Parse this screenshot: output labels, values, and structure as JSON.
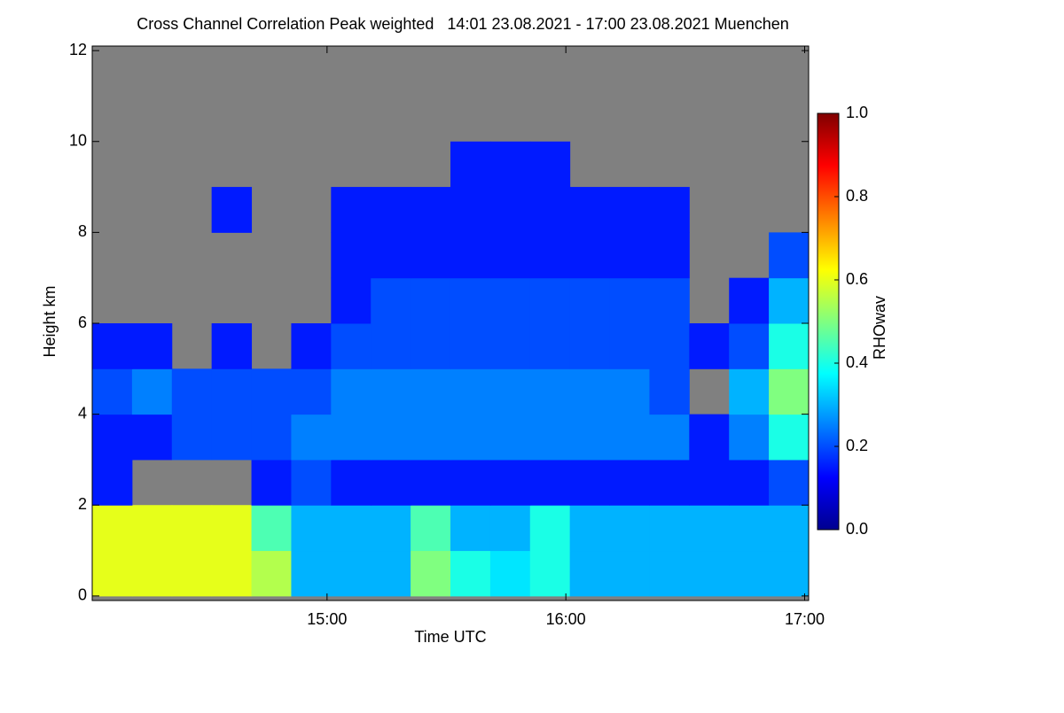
{
  "chart_data": {
    "type": "heatmap",
    "title": "Cross Channel Correlation Peak weighted   14:01 23.08.2021 - 17:00 23.08.2021 Muenchen",
    "x_label": "Time UTC",
    "y_label": "Height km",
    "colorbar_label": "RHOwav",
    "xlim": [
      14.0167,
      17.0167
    ],
    "xticks": [
      {
        "value": 15,
        "label": "15:00"
      },
      {
        "value": 16,
        "label": "16:00"
      },
      {
        "value": 17,
        "label": "17:00"
      }
    ],
    "ylim": [
      -0.1,
      12.1
    ],
    "yticks": [
      0,
      2,
      4,
      6,
      8,
      10,
      12
    ],
    "clim": [
      0,
      1
    ],
    "cticks": [
      {
        "value": 0,
        "label": "0.0"
      },
      0.2,
      0.4,
      0.6,
      0.8,
      {
        "value": 1,
        "label": "1.0"
      }
    ],
    "colormap": [
      "#00008f",
      "#0000ff",
      "#0080ff",
      "#00ffff",
      "#80ff80",
      "#ffff00",
      "#ff8000",
      "#ff0000",
      "#800000"
    ],
    "nodata_color": "#808080",
    "x": [
      14.1,
      14.2667,
      14.4333,
      14.6,
      14.7667,
      14.9333,
      15.1,
      15.2667,
      15.4333,
      15.6,
      15.7667,
      15.9333,
      16.1,
      16.2667,
      16.4333,
      16.6,
      16.7667,
      16.9333
    ],
    "y": [
      0.5,
      1.5,
      2.5,
      3.5,
      4.5,
      5.5,
      6.5,
      7.5,
      8.5,
      9.5,
      10.5,
      11.5
    ],
    "values": [
      [
        0.6,
        0.6,
        0.6,
        0.6,
        0.55,
        0.3,
        0.3,
        0.3,
        0.5,
        0.4,
        0.35,
        0.4,
        0.3,
        0.3,
        0.3,
        0.3,
        0.3,
        0.3
      ],
      [
        0.6,
        0.6,
        0.6,
        0.6,
        0.45,
        0.3,
        0.3,
        0.3,
        0.45,
        0.3,
        0.3,
        0.4,
        0.3,
        0.3,
        0.3,
        0.3,
        0.3,
        0.3
      ],
      [
        0.15,
        null,
        null,
        null,
        0.15,
        0.2,
        0.15,
        0.15,
        0.15,
        0.15,
        0.15,
        0.15,
        0.15,
        0.15,
        0.15,
        0.15,
        0.15,
        0.2
      ],
      [
        0.15,
        0.15,
        0.2,
        0.2,
        0.2,
        0.25,
        0.25,
        0.25,
        0.25,
        0.25,
        0.25,
        0.25,
        0.25,
        0.25,
        0.25,
        0.15,
        0.25,
        0.4
      ],
      [
        0.2,
        0.25,
        0.2,
        0.2,
        0.2,
        0.2,
        0.25,
        0.25,
        0.25,
        0.25,
        0.25,
        0.25,
        0.25,
        0.25,
        0.2,
        null,
        0.3,
        0.5
      ],
      [
        0.15,
        0.15,
        null,
        0.15,
        null,
        0.15,
        0.2,
        0.2,
        0.2,
        0.2,
        0.2,
        0.2,
        0.2,
        0.2,
        0.2,
        0.15,
        0.2,
        0.4
      ],
      [
        null,
        null,
        null,
        null,
        null,
        null,
        0.15,
        0.2,
        0.2,
        0.2,
        0.2,
        0.2,
        0.2,
        0.2,
        0.2,
        null,
        0.15,
        0.3
      ],
      [
        null,
        null,
        null,
        null,
        null,
        null,
        0.15,
        0.15,
        0.15,
        0.15,
        0.15,
        0.15,
        0.15,
        0.15,
        0.15,
        null,
        null,
        0.2
      ],
      [
        null,
        null,
        null,
        0.15,
        null,
        null,
        0.15,
        0.15,
        0.15,
        0.15,
        0.15,
        0.15,
        0.15,
        0.15,
        0.15,
        null,
        null,
        null
      ],
      [
        null,
        null,
        null,
        null,
        null,
        null,
        null,
        null,
        null,
        0.15,
        0.15,
        0.15,
        null,
        null,
        null,
        null,
        null,
        null
      ],
      [
        null,
        null,
        null,
        null,
        null,
        null,
        null,
        null,
        null,
        null,
        null,
        null,
        null,
        null,
        null,
        null,
        null,
        null
      ],
      [
        null,
        null,
        null,
        null,
        null,
        null,
        null,
        null,
        null,
        null,
        null,
        null,
        null,
        null,
        null,
        null,
        null,
        null
      ]
    ]
  }
}
